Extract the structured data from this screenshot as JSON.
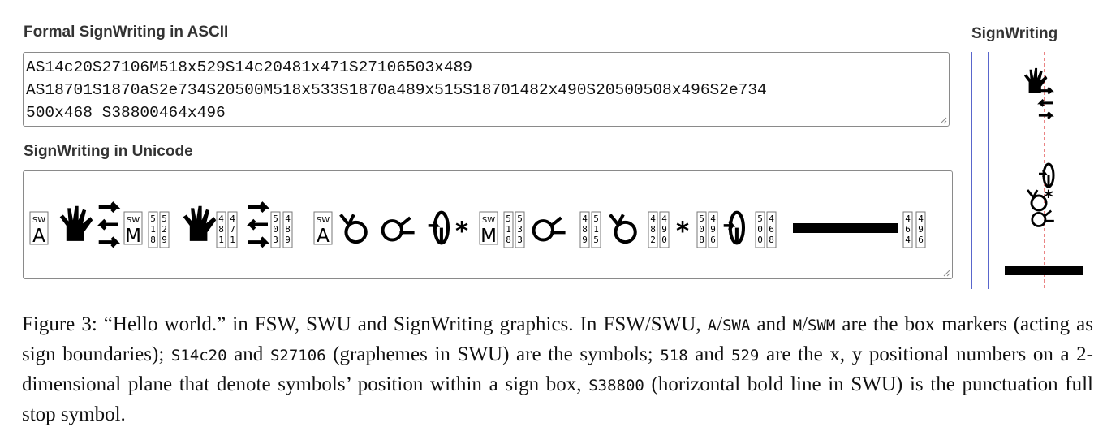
{
  "labels": {
    "fsw": "Formal SignWriting in ASCII",
    "swu": "SignWriting in Unicode",
    "sw": "SignWriting"
  },
  "fsw_lines": [
    "AS14c20S27106M518x529S14c20481x471S27106503x489",
    "AS18701S1870aS2e734S20500M518x533S1870a489x515S18701482x490S20500508x496S2e734",
    "500x468 S38800464x496"
  ],
  "swu": {
    "box_marker_a": "A",
    "box_marker_m": "M",
    "marker_tag": "SW",
    "sign1": {
      "m_digits": [
        "5",
        "1",
        "8"
      ],
      "m_digits2": [
        "5",
        "2",
        "9"
      ],
      "s1_digits": [
        "4",
        "8",
        "1"
      ],
      "s1_digits2": [
        "4",
        "7",
        "1"
      ],
      "s2_digits": [
        "5",
        "0",
        "3"
      ],
      "s2_digits2": [
        "4",
        "8",
        "9"
      ]
    },
    "sign2": {
      "m_digits": [
        "5",
        "1",
        "8"
      ],
      "m_digits2": [
        "5",
        "3",
        "3"
      ],
      "s1_digits": [
        "4",
        "8",
        "9"
      ],
      "s1_digits2": [
        "5",
        "1",
        "5"
      ],
      "s2_digits": [
        "4",
        "8",
        "2"
      ],
      "s2_digits2": [
        "4",
        "9",
        "0"
      ],
      "s3_digits": [
        "5",
        "0",
        "8"
      ],
      "s3_digits2": [
        "4",
        "9",
        "6"
      ],
      "s4_digits": [
        "5",
        "0",
        "0"
      ],
      "s4_digits2": [
        "4",
        "6",
        "8"
      ]
    },
    "punct": {
      "digits": [
        "4",
        "6",
        "4"
      ],
      "digits2": [
        "4",
        "9",
        "6"
      ]
    }
  },
  "caption": {
    "p1": "Figure 3: “Hello world.” in FSW, SWU and SignWriting graphics. In FSW/SWU, ",
    "a": "A",
    "slash1": "/",
    "swa": "SWA",
    "and1": " and ",
    "m": "M",
    "slash2": "/",
    "swm": "SWM",
    "p2": " are the box markers (acting as sign boundaries); ",
    "s1": "S14c20",
    "and2": " and ",
    "s2": "S27106",
    "p3": " (graphemes in SWU) are the symbols; ",
    "n1": "518",
    "and3": " and ",
    "n2": "529",
    "p4": " are the x, y positional numbers on a 2-dimensional plane that denote symbols’ position within a sign box, ",
    "s3": "S38800",
    "p5": " (horizontal bold line in SWU) is the punctuation full stop symbol."
  }
}
